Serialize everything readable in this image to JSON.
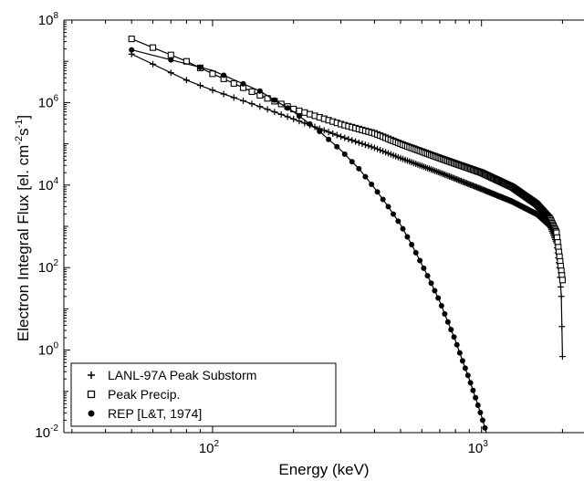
{
  "chart_data": {
    "type": "line",
    "xscale": "log",
    "yscale": "log",
    "xlim": [
      28,
      2600
    ],
    "ylim": [
      0.01,
      100000000
    ],
    "xlabel": "Energy (keV)",
    "ylabel": "Electron Integral Flux [el. cm⁻²s⁻¹]",
    "ylabel_parts": {
      "main": "Electron Integral Flux [el. cm",
      "sup1": "-2",
      "mid": "s",
      "sup2": "-1",
      "end": "]"
    },
    "x_ticks": [
      {
        "base": "10",
        "exp": "2",
        "value": 100
      },
      {
        "base": "10",
        "exp": "3",
        "value": 1000
      }
    ],
    "y_ticks": [
      {
        "base": "10",
        "exp": "-2",
        "value": 0.01
      },
      {
        "base": "10",
        "exp": "0",
        "value": 1
      },
      {
        "base": "10",
        "exp": "2",
        "value": 100
      },
      {
        "base": "10",
        "exp": "4",
        "value": 10000
      },
      {
        "base": "10",
        "exp": "6",
        "value": 1000000
      },
      {
        "base": "10",
        "exp": "8",
        "value": 100000000
      }
    ],
    "grid": false,
    "legend_position": "bottom-left",
    "series": [
      {
        "name": "LANL-97A Peak Substorm",
        "marker": "plus",
        "x_range_keV": [
          50,
          2000
        ],
        "points": [
          [
            50,
            15000000
          ],
          [
            80,
            3500000
          ],
          [
            100,
            2000000
          ],
          [
            150,
            800000
          ],
          [
            200,
            400000
          ],
          [
            300,
            150000
          ],
          [
            400,
            80000
          ],
          [
            500,
            45000
          ],
          [
            700,
            20000
          ],
          [
            1000,
            8000
          ],
          [
            1300,
            4000
          ],
          [
            1600,
            2000
          ],
          [
            1800,
            1000
          ],
          [
            1900,
            400
          ],
          [
            1950,
            100
          ],
          [
            1980,
            20
          ],
          [
            2000,
            0.7
          ]
        ]
      },
      {
        "name": "Peak Precip.",
        "marker": "square",
        "x_range_keV": [
          50,
          2000
        ],
        "points": [
          [
            50,
            35000000
          ],
          [
            80,
            10000000
          ],
          [
            100,
            5000000
          ],
          [
            150,
            1500000
          ],
          [
            200,
            700000
          ],
          [
            300,
            300000
          ],
          [
            400,
            180000
          ],
          [
            500,
            100000
          ],
          [
            700,
            45000
          ],
          [
            1000,
            20000
          ],
          [
            1300,
            9000
          ],
          [
            1600,
            3500
          ],
          [
            1800,
            1500
          ],
          [
            1900,
            700
          ],
          [
            2000,
            50
          ]
        ]
      },
      {
        "name": "REP [L&T, 1974]",
        "marker": "dot",
        "x_range_keV": [
          50,
          1100
        ],
        "points": [
          [
            50,
            19000000
          ],
          [
            100,
            6000000
          ],
          [
            150,
            1900000
          ],
          [
            200,
            600000
          ],
          [
            250,
            200000
          ],
          [
            300,
            70000
          ],
          [
            350,
            25000
          ],
          [
            400,
            8500
          ],
          [
            450,
            3000
          ],
          [
            500,
            1100
          ],
          [
            550,
            360
          ],
          [
            600,
            120
          ],
          [
            650,
            42
          ],
          [
            700,
            15
          ],
          [
            750,
            4.8
          ],
          [
            800,
            1.7
          ],
          [
            850,
            0.55
          ],
          [
            900,
            0.2
          ],
          [
            950,
            0.07
          ],
          [
            1000,
            0.025
          ],
          [
            1050,
            0.0085
          ],
          [
            1100,
            0.003
          ]
        ]
      }
    ]
  }
}
